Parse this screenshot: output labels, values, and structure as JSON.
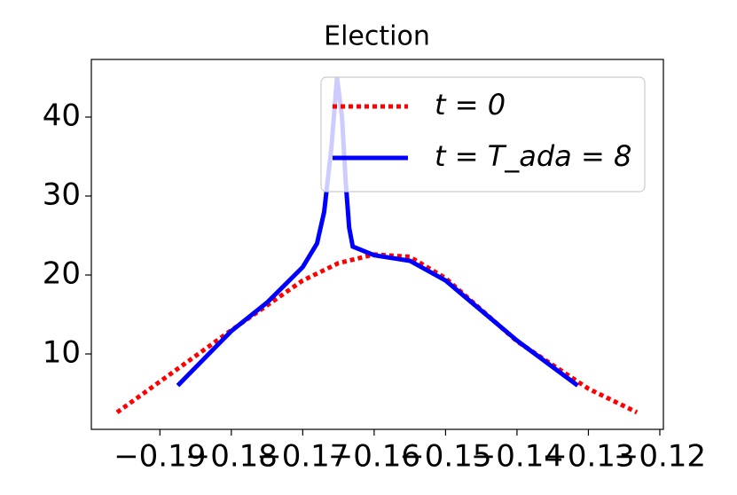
{
  "chart_data": {
    "type": "line",
    "title": "Election",
    "series": [
      {
        "name": "t = 0",
        "color": "#ff0000",
        "style": "dotted",
        "x": [
          -0.196,
          -0.19,
          -0.18,
          -0.17,
          -0.165,
          -0.16,
          -0.155,
          -0.15,
          -0.14,
          -0.13,
          -0.1232
        ],
        "values": [
          2.6,
          6.5,
          13,
          19.3,
          21.5,
          22.6,
          22.3,
          19.6,
          11.6,
          5.6,
          2.6
        ]
      },
      {
        "name": "t = T_ada = 8",
        "color": "#0000ff",
        "style": "solid",
        "x": [
          -0.1875,
          -0.18,
          -0.175,
          -0.17,
          -0.168,
          -0.167,
          -0.166,
          -0.1652,
          -0.1645,
          -0.164,
          -0.1635,
          -0.163,
          -0.16,
          -0.155,
          -0.15,
          -0.14,
          -0.1315
        ],
        "values": [
          6.0,
          12.9,
          16.5,
          21,
          24,
          28,
          36,
          45,
          40,
          32,
          26,
          23.6,
          22.5,
          21.8,
          19.3,
          11.7,
          6.0
        ]
      }
    ],
    "xlim": [
      -0.1996,
      -0.1195
    ],
    "xticks": [
      {
        "value": -0.19,
        "label": "−0.19"
      },
      {
        "value": -0.18,
        "label": "−0.18"
      },
      {
        "value": -0.17,
        "label": "−0.17"
      },
      {
        "value": -0.16,
        "label": "−0.16"
      },
      {
        "value": -0.15,
        "label": "−0.15"
      },
      {
        "value": -0.14,
        "label": "−0.14"
      },
      {
        "value": -0.13,
        "label": "−0.13"
      },
      {
        "value": -0.12,
        "label": "−0.12"
      }
    ],
    "ylim": [
      0.45,
      47.3
    ],
    "yticks": [
      10,
      20,
      30,
      40
    ],
    "legend": "upper right",
    "grid": false
  }
}
